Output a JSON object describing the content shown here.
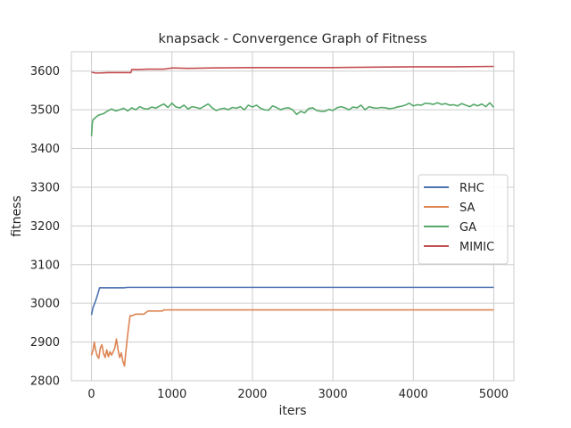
{
  "chart_data": {
    "type": "line",
    "title": "knapsack - Convergence Graph of Fitness",
    "xlabel": "iters",
    "ylabel": "fitness",
    "xlim": [
      -250,
      5250
    ],
    "ylim": [
      2800,
      3650
    ],
    "xticks": [
      0,
      1000,
      2000,
      3000,
      4000,
      5000
    ],
    "xtick_labels": [
      "0",
      "1000",
      "2000",
      "3000",
      "4000",
      "5000"
    ],
    "yticks": [
      2800,
      2900,
      3000,
      3100,
      3200,
      3300,
      3400,
      3500,
      3600
    ],
    "ytick_labels": [
      "2800",
      "2900",
      "3000",
      "3100",
      "3200",
      "3300",
      "3400",
      "3500",
      "3600"
    ],
    "grid": true,
    "legend_position": "center-right",
    "series": [
      {
        "name": "RHC",
        "color": "#4c72b0",
        "points": [
          [
            0,
            2970
          ],
          [
            20,
            2990
          ],
          [
            40,
            3000
          ],
          [
            60,
            3012
          ],
          [
            80,
            3025
          ],
          [
            100,
            3040
          ],
          [
            200,
            3040
          ],
          [
            400,
            3040
          ],
          [
            450,
            3041
          ],
          [
            1000,
            3041
          ],
          [
            2000,
            3041
          ],
          [
            3000,
            3041
          ],
          [
            4000,
            3041
          ],
          [
            5000,
            3041
          ]
        ]
      },
      {
        "name": "SA",
        "color": "#dd8452",
        "points": [
          [
            0,
            2866
          ],
          [
            20,
            2880
          ],
          [
            35,
            2900
          ],
          [
            50,
            2880
          ],
          [
            70,
            2865
          ],
          [
            90,
            2858
          ],
          [
            110,
            2885
          ],
          [
            130,
            2893
          ],
          [
            150,
            2870
          ],
          [
            170,
            2860
          ],
          [
            190,
            2880
          ],
          [
            210,
            2862
          ],
          [
            230,
            2875
          ],
          [
            250,
            2866
          ],
          [
            270,
            2875
          ],
          [
            290,
            2885
          ],
          [
            310,
            2908
          ],
          [
            330,
            2880
          ],
          [
            350,
            2860
          ],
          [
            370,
            2872
          ],
          [
            390,
            2850
          ],
          [
            410,
            2838
          ],
          [
            425,
            2870
          ],
          [
            445,
            2910
          ],
          [
            465,
            2945
          ],
          [
            480,
            2968
          ],
          [
            500,
            2968
          ],
          [
            550,
            2972
          ],
          [
            600,
            2972
          ],
          [
            650,
            2972
          ],
          [
            700,
            2980
          ],
          [
            800,
            2980
          ],
          [
            880,
            2980
          ],
          [
            900,
            2983
          ],
          [
            1000,
            2983
          ],
          [
            2000,
            2983
          ],
          [
            3000,
            2983
          ],
          [
            4000,
            2983
          ],
          [
            5000,
            2983
          ]
        ]
      },
      {
        "name": "GA",
        "color": "#55a868",
        "points": [
          [
            0,
            3432
          ],
          [
            10,
            3465
          ],
          [
            20,
            3475
          ],
          [
            40,
            3478
          ],
          [
            60,
            3482
          ],
          [
            80,
            3485
          ],
          [
            100,
            3487
          ],
          [
            150,
            3490
          ],
          [
            200,
            3497
          ],
          [
            250,
            3502
          ],
          [
            300,
            3497
          ],
          [
            350,
            3500
          ],
          [
            400,
            3504
          ],
          [
            450,
            3497
          ],
          [
            500,
            3505
          ],
          [
            550,
            3500
          ],
          [
            600,
            3508
          ],
          [
            650,
            3503
          ],
          [
            700,
            3502
          ],
          [
            750,
            3507
          ],
          [
            800,
            3504
          ],
          [
            850,
            3510
          ],
          [
            900,
            3515
          ],
          [
            950,
            3506
          ],
          [
            1000,
            3517
          ],
          [
            1050,
            3507
          ],
          [
            1100,
            3505
          ],
          [
            1150,
            3512
          ],
          [
            1200,
            3502
          ],
          [
            1250,
            3508
          ],
          [
            1300,
            3506
          ],
          [
            1350,
            3503
          ],
          [
            1400,
            3509
          ],
          [
            1450,
            3515
          ],
          [
            1500,
            3505
          ],
          [
            1550,
            3498
          ],
          [
            1600,
            3502
          ],
          [
            1650,
            3504
          ],
          [
            1700,
            3500
          ],
          [
            1750,
            3506
          ],
          [
            1800,
            3504
          ],
          [
            1850,
            3508
          ],
          [
            1900,
            3500
          ],
          [
            1950,
            3512
          ],
          [
            2000,
            3507
          ],
          [
            2050,
            3512
          ],
          [
            2100,
            3504
          ],
          [
            2150,
            3500
          ],
          [
            2200,
            3499
          ],
          [
            2250,
            3510
          ],
          [
            2300,
            3506
          ],
          [
            2350,
            3500
          ],
          [
            2400,
            3504
          ],
          [
            2450,
            3505
          ],
          [
            2500,
            3500
          ],
          [
            2550,
            3488
          ],
          [
            2600,
            3496
          ],
          [
            2650,
            3492
          ],
          [
            2700,
            3503
          ],
          [
            2750,
            3505
          ],
          [
            2800,
            3498
          ],
          [
            2850,
            3496
          ],
          [
            2900,
            3496
          ],
          [
            2950,
            3501
          ],
          [
            3000,
            3498
          ],
          [
            3050,
            3505
          ],
          [
            3100,
            3508
          ],
          [
            3150,
            3505
          ],
          [
            3200,
            3500
          ],
          [
            3250,
            3507
          ],
          [
            3300,
            3505
          ],
          [
            3350,
            3512
          ],
          [
            3400,
            3500
          ],
          [
            3450,
            3508
          ],
          [
            3500,
            3505
          ],
          [
            3550,
            3504
          ],
          [
            3600,
            3506
          ],
          [
            3650,
            3505
          ],
          [
            3700,
            3503
          ],
          [
            3750,
            3504
          ],
          [
            3800,
            3507
          ],
          [
            3850,
            3509
          ],
          [
            3900,
            3512
          ],
          [
            3950,
            3517
          ],
          [
            4000,
            3510
          ],
          [
            4050,
            3513
          ],
          [
            4100,
            3512
          ],
          [
            4150,
            3517
          ],
          [
            4200,
            3516
          ],
          [
            4250,
            3514
          ],
          [
            4300,
            3518
          ],
          [
            4350,
            3514
          ],
          [
            4400,
            3516
          ],
          [
            4450,
            3512
          ],
          [
            4500,
            3513
          ],
          [
            4550,
            3510
          ],
          [
            4600,
            3516
          ],
          [
            4650,
            3512
          ],
          [
            4700,
            3508
          ],
          [
            4750,
            3514
          ],
          [
            4800,
            3510
          ],
          [
            4850,
            3515
          ],
          [
            4900,
            3508
          ],
          [
            4950,
            3518
          ],
          [
            5000,
            3506
          ]
        ]
      },
      {
        "name": "MIMIC",
        "color": "#c44e52",
        "points": [
          [
            0,
            3597
          ],
          [
            50,
            3595
          ],
          [
            100,
            3595
          ],
          [
            200,
            3596
          ],
          [
            300,
            3596
          ],
          [
            400,
            3596
          ],
          [
            490,
            3596
          ],
          [
            500,
            3604
          ],
          [
            600,
            3604
          ],
          [
            700,
            3605
          ],
          [
            800,
            3605
          ],
          [
            900,
            3605
          ],
          [
            1000,
            3608
          ],
          [
            1200,
            3607
          ],
          [
            1500,
            3608
          ],
          [
            2000,
            3609
          ],
          [
            2500,
            3609
          ],
          [
            3000,
            3609
          ],
          [
            3500,
            3610
          ],
          [
            4000,
            3611
          ],
          [
            4500,
            3611
          ],
          [
            5000,
            3612
          ]
        ]
      }
    ]
  }
}
